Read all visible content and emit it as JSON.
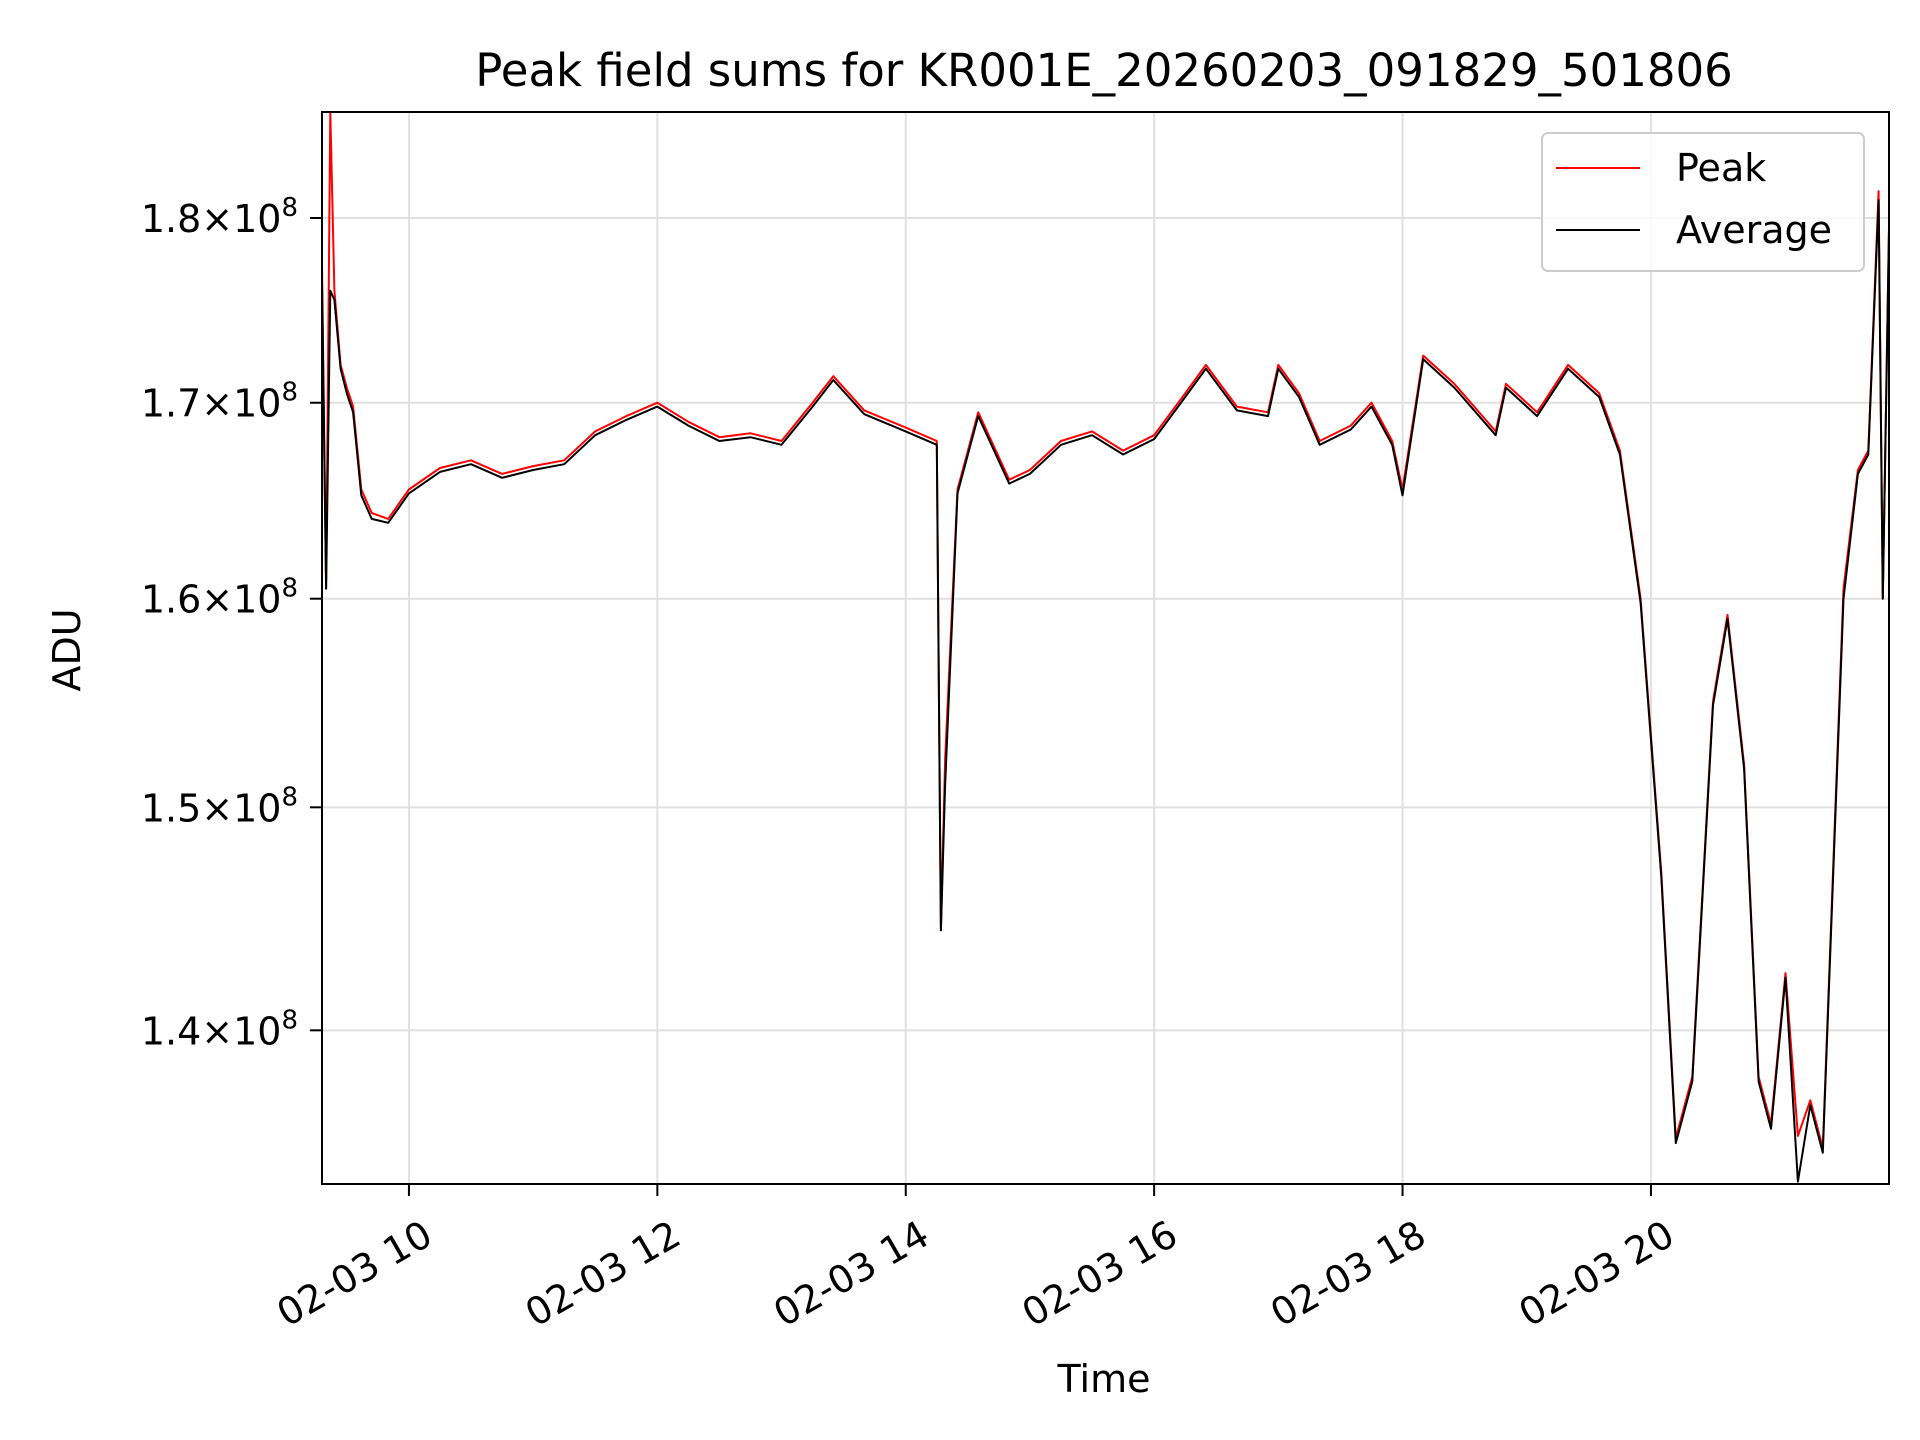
{
  "chart_data": {
    "type": "line",
    "title": "Peak field sums for KR001E_20260203_091829_501806",
    "xlabel": "Time",
    "ylabel": "ADU",
    "y_scale": "log",
    "grid": true,
    "legend_position": "top-right",
    "xlim": [
      "2026-02-03 09:18",
      "2026-02-03 21:55"
    ],
    "ylim": [
      133500000,
      186000000
    ],
    "x_ticks": [
      {
        "value": "2026-02-03 10:00",
        "label": "02-03 10"
      },
      {
        "value": "2026-02-03 12:00",
        "label": "02-03 12"
      },
      {
        "value": "2026-02-03 14:00",
        "label": "02-03 14"
      },
      {
        "value": "2026-02-03 16:00",
        "label": "02-03 16"
      },
      {
        "value": "2026-02-03 18:00",
        "label": "02-03 18"
      },
      {
        "value": "2026-02-03 20:00",
        "label": "02-03 20"
      }
    ],
    "y_ticks": [
      {
        "value": 140000000,
        "mantissa": "1.4",
        "base": "10",
        "exponent": "8"
      },
      {
        "value": 150000000,
        "mantissa": "1.5",
        "base": "10",
        "exponent": "8"
      },
      {
        "value": 160000000,
        "mantissa": "1.6",
        "base": "10",
        "exponent": "8"
      },
      {
        "value": 170000000,
        "mantissa": "1.7",
        "base": "10",
        "exponent": "8"
      },
      {
        "value": 180000000,
        "mantissa": "1.8",
        "base": "10",
        "exponent": "8"
      }
    ],
    "series": [
      {
        "name": "Peak",
        "color": "#ff0000",
        "points": [
          [
            "2026-02-03 09:18",
            177500000
          ],
          [
            "2026-02-03 09:20",
            160500000
          ],
          [
            "2026-02-03 09:22",
            186000000
          ],
          [
            "2026-02-03 09:24",
            176000000
          ],
          [
            "2026-02-03 09:27",
            172000000
          ],
          [
            "2026-02-03 09:30",
            170800000
          ],
          [
            "2026-02-03 09:33",
            169800000
          ],
          [
            "2026-02-03 09:37",
            165500000
          ],
          [
            "2026-02-03 09:42",
            164300000
          ],
          [
            "2026-02-03 09:50",
            164000000
          ],
          [
            "2026-02-03 10:00",
            165500000
          ],
          [
            "2026-02-03 10:15",
            166600000
          ],
          [
            "2026-02-03 10:30",
            167000000
          ],
          [
            "2026-02-03 10:45",
            166300000
          ],
          [
            "2026-02-03 11:00",
            166700000
          ],
          [
            "2026-02-03 11:15",
            167000000
          ],
          [
            "2026-02-03 11:30",
            168500000
          ],
          [
            "2026-02-03 11:45",
            169300000
          ],
          [
            "2026-02-03 12:00",
            170000000
          ],
          [
            "2026-02-03 12:15",
            169000000
          ],
          [
            "2026-02-03 12:30",
            168200000
          ],
          [
            "2026-02-03 12:45",
            168400000
          ],
          [
            "2026-02-03 13:00",
            168000000
          ],
          [
            "2026-02-03 13:15",
            170000000
          ],
          [
            "2026-02-03 13:25",
            171400000
          ],
          [
            "2026-02-03 13:40",
            169600000
          ],
          [
            "2026-02-03 14:00",
            168700000
          ],
          [
            "2026-02-03 14:15",
            168000000
          ],
          [
            "2026-02-03 14:17",
            144400000
          ],
          [
            "2026-02-03 14:19",
            152200000
          ],
          [
            "2026-02-03 14:25",
            165500000
          ],
          [
            "2026-02-03 14:35",
            169500000
          ],
          [
            "2026-02-03 14:50",
            166000000
          ],
          [
            "2026-02-03 15:00",
            166500000
          ],
          [
            "2026-02-03 15:15",
            168000000
          ],
          [
            "2026-02-03 15:30",
            168500000
          ],
          [
            "2026-02-03 15:45",
            167500000
          ],
          [
            "2026-02-03 16:00",
            168300000
          ],
          [
            "2026-02-03 16:15",
            170500000
          ],
          [
            "2026-02-03 16:25",
            172000000
          ],
          [
            "2026-02-03 16:40",
            169800000
          ],
          [
            "2026-02-03 16:55",
            169500000
          ],
          [
            "2026-02-03 17:00",
            172000000
          ],
          [
            "2026-02-03 17:10",
            170500000
          ],
          [
            "2026-02-03 17:20",
            168000000
          ],
          [
            "2026-02-03 17:35",
            168800000
          ],
          [
            "2026-02-03 17:45",
            170000000
          ],
          [
            "2026-02-03 17:55",
            168000000
          ],
          [
            "2026-02-03 18:00",
            165500000
          ],
          [
            "2026-02-03 18:10",
            172500000
          ],
          [
            "2026-02-03 18:25",
            171000000
          ],
          [
            "2026-02-03 18:45",
            168500000
          ],
          [
            "2026-02-03 18:50",
            171000000
          ],
          [
            "2026-02-03 19:05",
            169500000
          ],
          [
            "2026-02-03 19:20",
            172000000
          ],
          [
            "2026-02-03 19:35",
            170500000
          ],
          [
            "2026-02-03 19:45",
            167500000
          ],
          [
            "2026-02-03 19:55",
            160000000
          ],
          [
            "2026-02-03 20:05",
            147000000
          ],
          [
            "2026-02-03 20:12",
            135400000
          ],
          [
            "2026-02-03 20:20",
            138000000
          ],
          [
            "2026-02-03 20:30",
            155000000
          ],
          [
            "2026-02-03 20:37",
            159200000
          ],
          [
            "2026-02-03 20:45",
            152000000
          ],
          [
            "2026-02-03 20:52",
            138000000
          ],
          [
            "2026-02-03 20:58",
            136000000
          ],
          [
            "2026-02-03 21:05",
            142500000
          ],
          [
            "2026-02-03 21:11",
            135500000
          ],
          [
            "2026-02-03 21:17",
            137000000
          ],
          [
            "2026-02-03 21:23",
            135000000
          ],
          [
            "2026-02-03 21:33",
            160500000
          ],
          [
            "2026-02-03 21:40",
            166500000
          ],
          [
            "2026-02-03 21:45",
            167500000
          ],
          [
            "2026-02-03 21:50",
            181500000
          ],
          [
            "2026-02-03 21:52",
            160000000
          ],
          [
            "2026-02-03 21:55",
            179500000
          ]
        ]
      },
      {
        "name": "Average",
        "color": "#000000",
        "points": [
          [
            "2026-02-03 09:18",
            176500000
          ],
          [
            "2026-02-03 09:20",
            160500000
          ],
          [
            "2026-02-03 09:22",
            176000000
          ],
          [
            "2026-02-03 09:24",
            175500000
          ],
          [
            "2026-02-03 09:27",
            171800000
          ],
          [
            "2026-02-03 09:30",
            170500000
          ],
          [
            "2026-02-03 09:33",
            169500000
          ],
          [
            "2026-02-03 09:37",
            165200000
          ],
          [
            "2026-02-03 09:42",
            164000000
          ],
          [
            "2026-02-03 09:50",
            163800000
          ],
          [
            "2026-02-03 10:00",
            165300000
          ],
          [
            "2026-02-03 10:15",
            166400000
          ],
          [
            "2026-02-03 10:30",
            166800000
          ],
          [
            "2026-02-03 10:45",
            166100000
          ],
          [
            "2026-02-03 11:00",
            166500000
          ],
          [
            "2026-02-03 11:15",
            166800000
          ],
          [
            "2026-02-03 11:30",
            168300000
          ],
          [
            "2026-02-03 11:45",
            169100000
          ],
          [
            "2026-02-03 12:00",
            169800000
          ],
          [
            "2026-02-03 12:15",
            168800000
          ],
          [
            "2026-02-03 12:30",
            168000000
          ],
          [
            "2026-02-03 12:45",
            168200000
          ],
          [
            "2026-02-03 13:00",
            167800000
          ],
          [
            "2026-02-03 13:15",
            169800000
          ],
          [
            "2026-02-03 13:25",
            171200000
          ],
          [
            "2026-02-03 13:40",
            169400000
          ],
          [
            "2026-02-03 14:00",
            168500000
          ],
          [
            "2026-02-03 14:15",
            167800000
          ],
          [
            "2026-02-03 14:17",
            144400000
          ],
          [
            "2026-02-03 14:19",
            151000000
          ],
          [
            "2026-02-03 14:25",
            165300000
          ],
          [
            "2026-02-03 14:35",
            169300000
          ],
          [
            "2026-02-03 14:50",
            165800000
          ],
          [
            "2026-02-03 15:00",
            166300000
          ],
          [
            "2026-02-03 15:15",
            167800000
          ],
          [
            "2026-02-03 15:30",
            168300000
          ],
          [
            "2026-02-03 15:45",
            167300000
          ],
          [
            "2026-02-03 16:00",
            168100000
          ],
          [
            "2026-02-03 16:15",
            170300000
          ],
          [
            "2026-02-03 16:25",
            171800000
          ],
          [
            "2026-02-03 16:40",
            169600000
          ],
          [
            "2026-02-03 16:55",
            169300000
          ],
          [
            "2026-02-03 17:00",
            171800000
          ],
          [
            "2026-02-03 17:10",
            170300000
          ],
          [
            "2026-02-03 17:20",
            167800000
          ],
          [
            "2026-02-03 17:35",
            168600000
          ],
          [
            "2026-02-03 17:45",
            169800000
          ],
          [
            "2026-02-03 17:55",
            167800000
          ],
          [
            "2026-02-03 18:00",
            165200000
          ],
          [
            "2026-02-03 18:10",
            172300000
          ],
          [
            "2026-02-03 18:25",
            170800000
          ],
          [
            "2026-02-03 18:45",
            168300000
          ],
          [
            "2026-02-03 18:50",
            170800000
          ],
          [
            "2026-02-03 19:05",
            169300000
          ],
          [
            "2026-02-03 19:20",
            171800000
          ],
          [
            "2026-02-03 19:35",
            170300000
          ],
          [
            "2026-02-03 19:45",
            167300000
          ],
          [
            "2026-02-03 19:55",
            159800000
          ],
          [
            "2026-02-03 20:05",
            146800000
          ],
          [
            "2026-02-03 20:12",
            135200000
          ],
          [
            "2026-02-03 20:20",
            137800000
          ],
          [
            "2026-02-03 20:30",
            154800000
          ],
          [
            "2026-02-03 20:37",
            159000000
          ],
          [
            "2026-02-03 20:45",
            151800000
          ],
          [
            "2026-02-03 20:52",
            137800000
          ],
          [
            "2026-02-03 20:58",
            135800000
          ],
          [
            "2026-02-03 21:05",
            142300000
          ],
          [
            "2026-02-03 21:11",
            133600000
          ],
          [
            "2026-02-03 21:17",
            136800000
          ],
          [
            "2026-02-03 21:23",
            134800000
          ],
          [
            "2026-02-03 21:33",
            160000000
          ],
          [
            "2026-02-03 21:40",
            166300000
          ],
          [
            "2026-02-03 21:45",
            167300000
          ],
          [
            "2026-02-03 21:50",
            181000000
          ],
          [
            "2026-02-03 21:52",
            160000000
          ],
          [
            "2026-02-03 21:55",
            179300000
          ]
        ]
      }
    ]
  }
}
